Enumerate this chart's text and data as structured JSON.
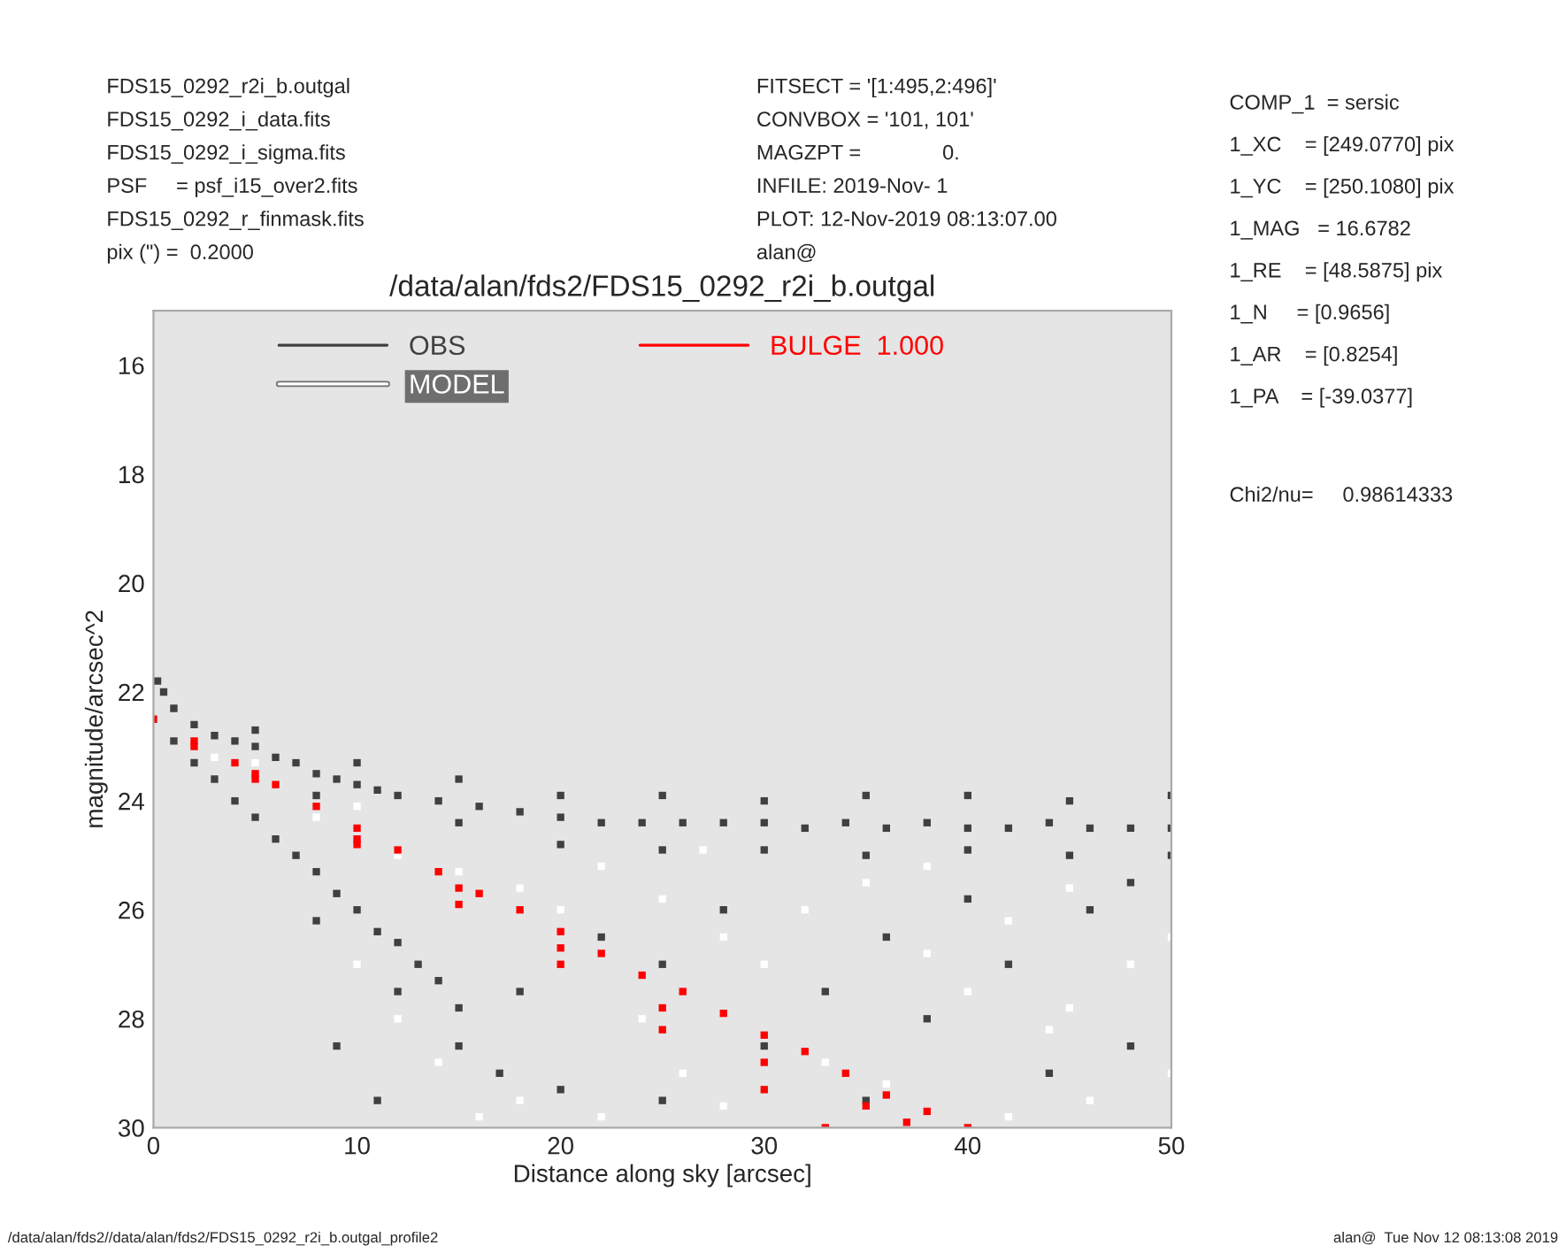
{
  "chart_data": {
    "type": "scatter",
    "title": "/data/alan/fds2/FDS15_0292_r2i_b.outgal",
    "xlabel": "Distance along sky [arcsec]",
    "ylabel": "magnitude/arcsec^2",
    "xlim": [
      0,
      50
    ],
    "xticks": [
      0,
      10,
      20,
      30,
      40,
      50
    ],
    "ylim": [
      30,
      15
    ],
    "yticks": [
      16,
      18,
      20,
      22,
      24,
      26,
      28,
      30
    ],
    "grid": false,
    "legend": "top",
    "marker": "square",
    "series": [
      {
        "name": "OBS",
        "color": "#404040",
        "x": [
          0.2,
          0.5,
          1,
          2,
          3,
          4,
          5,
          6,
          7,
          8,
          9,
          10,
          11,
          12,
          14,
          16,
          18,
          20,
          22,
          24,
          26,
          28,
          30,
          32,
          34,
          36,
          38,
          40,
          42,
          44,
          46,
          48,
          50,
          5,
          10,
          15,
          20,
          25,
          30,
          35,
          40,
          45,
          50,
          8,
          15,
          20,
          25,
          30,
          35,
          40,
          45,
          50,
          1,
          2,
          3,
          4,
          5,
          6,
          7,
          8,
          9,
          10,
          11,
          12,
          13,
          14,
          15,
          8,
          12,
          15,
          17,
          20,
          9,
          11,
          18,
          22,
          25,
          28,
          30,
          33,
          36,
          38,
          42,
          44,
          46,
          48,
          25,
          35,
          48,
          40
        ],
        "values": [
          21.8,
          22.0,
          22.3,
          22.6,
          22.8,
          22.9,
          23.0,
          23.2,
          23.3,
          23.5,
          23.6,
          23.7,
          23.8,
          23.9,
          24.0,
          24.1,
          24.2,
          24.3,
          24.4,
          24.4,
          24.4,
          24.4,
          24.4,
          24.5,
          24.4,
          24.5,
          24.4,
          24.5,
          24.5,
          24.4,
          24.5,
          24.5,
          24.5,
          22.7,
          23.3,
          23.6,
          23.9,
          23.9,
          24.0,
          23.9,
          23.9,
          24.0,
          23.9,
          23.9,
          24.4,
          24.8,
          24.9,
          24.9,
          25.0,
          24.9,
          25.0,
          25.0,
          22.9,
          23.3,
          23.6,
          24.0,
          24.3,
          24.7,
          25.0,
          25.3,
          25.7,
          26.0,
          26.4,
          26.6,
          27.0,
          27.3,
          27.8,
          26.2,
          27.5,
          28.5,
          29.0,
          29.3,
          28.5,
          29.5,
          27.5,
          26.5,
          27.0,
          26.0,
          28.5,
          27.5,
          26.5,
          28.0,
          27.0,
          29.0,
          26.0,
          28.5,
          29.5,
          29.5,
          25.5,
          25.8
        ]
      },
      {
        "name": "MODEL",
        "color": "#ffffff",
        "x": [
          3,
          5,
          8,
          10,
          12,
          15,
          18,
          20,
          22,
          25,
          28,
          30,
          32,
          35,
          38,
          40,
          42,
          45,
          48,
          50,
          14,
          18,
          22,
          26,
          28,
          36,
          42,
          46,
          50,
          44,
          33,
          16,
          24,
          12,
          10,
          38,
          27,
          45
        ],
        "values": [
          23.2,
          23.3,
          24.3,
          24.1,
          25.0,
          25.3,
          25.6,
          26.0,
          25.2,
          25.8,
          26.5,
          27.0,
          26.0,
          25.5,
          26.8,
          27.5,
          26.2,
          25.6,
          27.0,
          26.5,
          28.8,
          29.5,
          29.8,
          29.0,
          29.6,
          29.2,
          29.8,
          29.5,
          29.0,
          28.2,
          28.8,
          29.8,
          28.0,
          28.0,
          27.0,
          25.2,
          24.9,
          27.8
        ]
      },
      {
        "name": "BULGE  1.000",
        "color": "#ff0000",
        "x": [
          0,
          2,
          4,
          6,
          8,
          10,
          12,
          14,
          16,
          18,
          20,
          22,
          24,
          26,
          28,
          30,
          32,
          34,
          36,
          38,
          40,
          2,
          5,
          10,
          15,
          20,
          25,
          30,
          33,
          5,
          10,
          15,
          20,
          25,
          30,
          35,
          37
        ],
        "values": [
          22.5,
          22.9,
          23.3,
          23.7,
          24.1,
          24.5,
          24.9,
          25.3,
          25.7,
          26.0,
          26.4,
          26.8,
          27.2,
          27.5,
          27.9,
          28.3,
          28.6,
          29.0,
          29.4,
          29.7,
          30.0,
          23.0,
          23.6,
          24.8,
          25.9,
          27.0,
          28.2,
          29.3,
          30.0,
          23.5,
          24.7,
          25.6,
          26.7,
          27.8,
          28.8,
          29.6,
          29.9
        ]
      }
    ],
    "annotations": [
      "FDS15_0292_r2i_b.outgal",
      "FDS15_0292_i_data.fits",
      "FDS15_0292_i_sigma.fits",
      "PSF     = psf_i15_over2.fits",
      "FDS15_0292_r_finmask.fits",
      "pix (\") =  0.2000",
      "FITSECT = '[1:495,2:496]'",
      "CONVBOX = '101, 101'",
      "MAGZPT =              0.",
      "INFILE: 2019-Nov- 1",
      "PLOT: 12-Nov-2019 08:13:07.00",
      "alan@",
      "COMP_1  = sersic",
      "1_XC    = [249.0770] pix",
      "1_YC    = [250.1080] pix",
      "1_MAG   = 16.6782",
      "1_RE    = [48.5875] pix",
      "1_N     = [0.9656]",
      "1_AR    = [0.8254]",
      "1_PA    = [-39.0377]",
      "Chi2/nu=     0.98614333",
      "/data/alan/fds2//data/alan/fds2/FDS15_0292_r2i_b.outgal_profile2",
      "alan@  Tue Nov 12 08:13:08 2019"
    ]
  }
}
